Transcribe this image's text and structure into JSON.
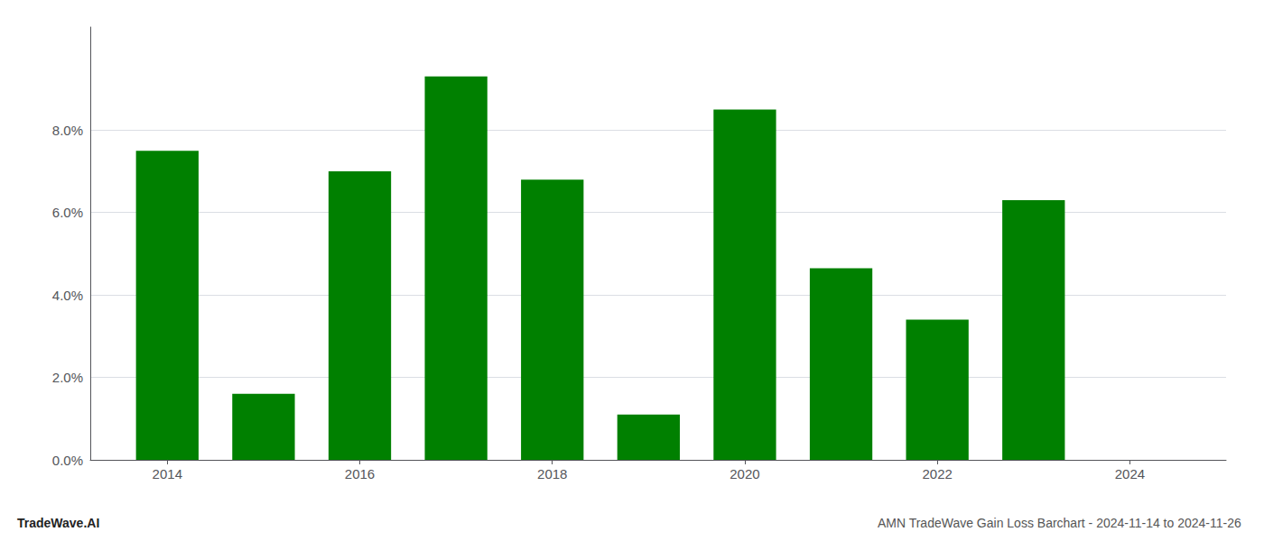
{
  "chart_data": {
    "type": "bar",
    "title": "AMN TradeWave Gain Loss Barchart - 2024-11-14 to 2024-11-26",
    "annotations": [
      "TradeWave.AI"
    ],
    "x": [
      2014,
      2015,
      2016,
      2017,
      2018,
      2019,
      2020,
      2021,
      2022,
      2023,
      2024
    ],
    "values": [
      0.075,
      0.016,
      0.07,
      0.093,
      0.068,
      0.011,
      0.085,
      0.0465,
      0.034,
      0.063,
      null
    ],
    "color": "#008000",
    "xlim": [
      2013.2,
      2025.0
    ],
    "xticks": [
      2014,
      2016,
      2018,
      2020,
      2022,
      2024
    ],
    "ylim": [
      0,
      0.105
    ],
    "yticks": [
      {
        "value": 0.0,
        "label": "0.0%"
      },
      {
        "value": 0.02,
        "label": "2.0%"
      },
      {
        "value": 0.04,
        "label": "4.0%"
      },
      {
        "value": 0.06,
        "label": "6.0%"
      },
      {
        "value": 0.08,
        "label": "8.0%"
      }
    ],
    "grid": true
  }
}
